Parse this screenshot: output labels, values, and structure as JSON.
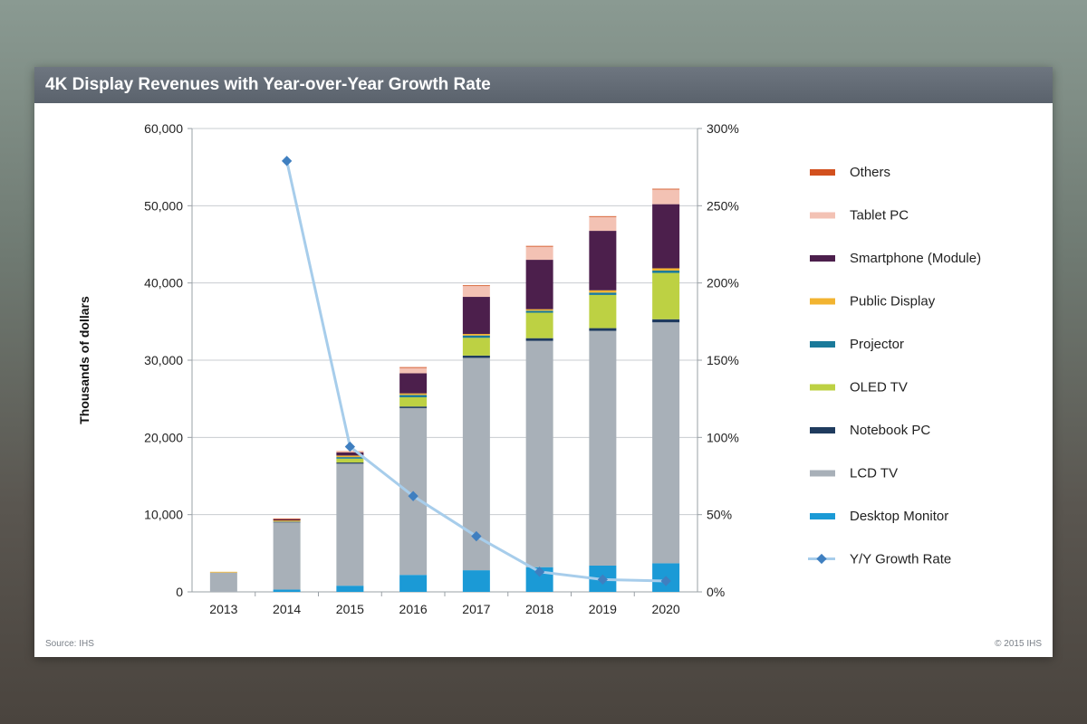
{
  "header": {
    "title": "4K Display Revenues with Year-over-Year Growth Rate"
  },
  "footer": {
    "source": "Source: IHS",
    "copyright": "© 2015 IHS"
  },
  "chart_data": {
    "type": "bar",
    "stacked": true,
    "categories": [
      "2013",
      "2014",
      "2015",
      "2016",
      "2017",
      "2018",
      "2019",
      "2020"
    ],
    "ylabel": "Thousands  of dollars",
    "ylim": [
      0,
      60000
    ],
    "y_ticks": [
      "0",
      "10,000",
      "20,000",
      "30,000",
      "40,000",
      "50,000",
      "60,000"
    ],
    "y2lim": [
      0,
      300
    ],
    "y2_ticks": [
      "0%",
      "50%",
      "100%",
      "150%",
      "200%",
      "250%",
      "300%"
    ],
    "grid": "horizontal",
    "legend_position": "right",
    "series": [
      {
        "name": "Desktop Monitor",
        "color": "#1b9ad6",
        "values": [
          0,
          300,
          800,
          2200,
          2800,
          3200,
          3400,
          3700
        ]
      },
      {
        "name": "LCD TV",
        "color": "#a8b0b8",
        "values": [
          2500,
          8700,
          15800,
          21600,
          27500,
          29300,
          30400,
          31200
        ]
      },
      {
        "name": "Notebook PC",
        "color": "#1f3b5e",
        "values": [
          0,
          50,
          150,
          200,
          300,
          350,
          350,
          400
        ]
      },
      {
        "name": "OLED TV",
        "color": "#bdd143",
        "values": [
          0,
          0,
          500,
          1200,
          2300,
          3300,
          4300,
          6000
        ]
      },
      {
        "name": "Projector",
        "color": "#1a7a9a",
        "values": [
          0,
          50,
          200,
          300,
          300,
          250,
          300,
          300
        ]
      },
      {
        "name": "Public Display",
        "color": "#f2b431",
        "values": [
          100,
          150,
          200,
          200,
          200,
          200,
          300,
          300
        ]
      },
      {
        "name": "Smartphone (Module)",
        "color": "#4c1f4c",
        "values": [
          0,
          150,
          400,
          2600,
          4800,
          6400,
          7700,
          8300
        ]
      },
      {
        "name": "Tablet PC",
        "color": "#f3c2b4",
        "values": [
          0,
          0,
          100,
          700,
          1400,
          1700,
          1800,
          1900
        ]
      },
      {
        "name": "Others",
        "color": "#d2501e",
        "values": [
          0,
          100,
          50,
          100,
          100,
          100,
          100,
          100
        ]
      }
    ],
    "line_series": {
      "name": "Y/Y Growth Rate",
      "color": "#a7cdeb",
      "marker_color": "#3f7fc0",
      "axis": "right",
      "x": [
        "2014",
        "2015",
        "2016",
        "2017",
        "2018",
        "2019",
        "2020"
      ],
      "values": [
        279,
        94,
        62,
        36,
        13,
        8,
        7
      ]
    },
    "legend_order": [
      "Others",
      "Tablet PC",
      "Smartphone (Module)",
      "Public Display",
      "Projector",
      "OLED TV",
      "Notebook PC",
      "LCD TV",
      "Desktop Monitor",
      "Y/Y Growth Rate"
    ]
  }
}
